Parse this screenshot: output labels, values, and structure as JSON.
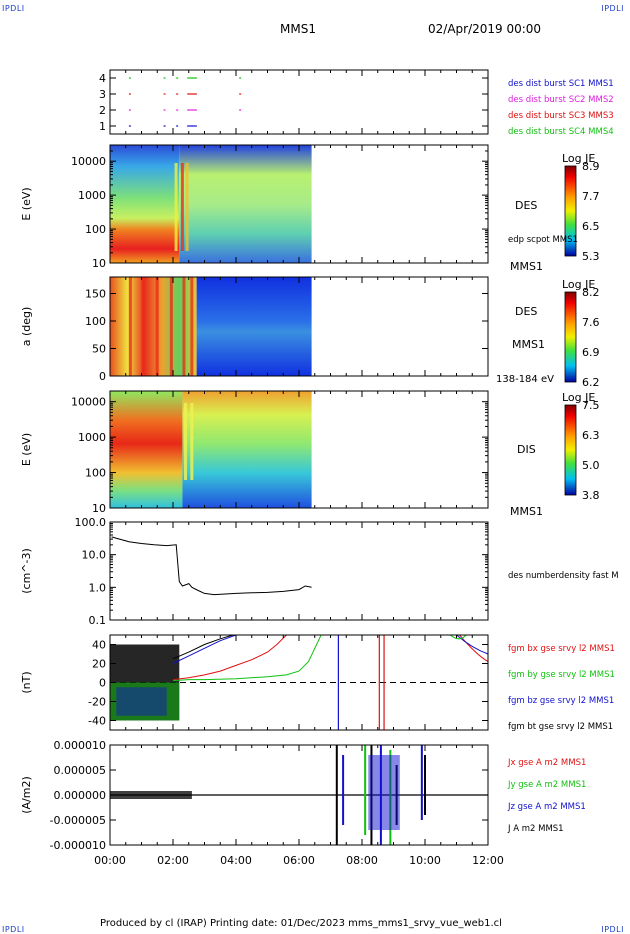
{
  "header": {
    "corner_tl": "IPDLI",
    "corner_tr": "IPDLI",
    "corner_bl": "IPDLI",
    "corner_br": "IPDLI",
    "spacecraft": "MMS1",
    "date": "02/Apr/2019 00:00"
  },
  "footer": {
    "text": "Produced by cl (IRAP)   Printing date: 01/Dec/2023   mms_mms1_srvy_vue_web1.cl"
  },
  "time_axis": {
    "ticks": [
      "00:00",
      "02:00",
      "04:00",
      "06:00",
      "08:00",
      "10:00",
      "12:00"
    ],
    "range_hours": [
      0,
      12
    ]
  },
  "chart_data": [
    {
      "type": "scatter",
      "panel": "burst-availability",
      "y_ticks": [
        "1",
        "2",
        "3",
        "4"
      ],
      "ylim": [
        0.5,
        4.5
      ],
      "series": [
        {
          "name": "des dist burst SC1 MMS1",
          "level": 1,
          "color": "#1010d0",
          "x_hours": [
            0.6,
            1.7,
            2.1,
            2.45,
            2.6
          ]
        },
        {
          "name": "des dist burst SC2 MMS2",
          "level": 2,
          "color": "#e020e0",
          "x_hours": [
            0.6,
            1.7,
            2.1,
            2.45,
            2.6,
            4.1
          ]
        },
        {
          "name": "des dist burst SC3 MMS3",
          "level": 3,
          "color": "#e01010",
          "x_hours": [
            0.6,
            1.7,
            2.1,
            2.45,
            2.6,
            4.1
          ]
        },
        {
          "name": "des dist burst SC4 MMS4",
          "level": 4,
          "color": "#10c010",
          "x_hours": [
            0.6,
            1.7,
            2.1,
            2.45,
            2.6,
            4.1
          ]
        }
      ]
    },
    {
      "type": "heatmap",
      "panel": "des-energy",
      "ylabel": "E (eV)",
      "y_scale": "log",
      "ylim": [
        10,
        30000
      ],
      "y_ticks": [
        "10",
        "100",
        "1000",
        "10000"
      ],
      "label_right": "DES",
      "label_right2": "edp scpot MMS1",
      "label_sc": "MMS1",
      "colorbar": {
        "title": "Log JE",
        "ticks": [
          "8.9",
          "7.7",
          "6.5",
          "5.3"
        ],
        "range": [
          5.3,
          8.9
        ]
      },
      "data_x_range_hours": [
        0,
        6.4
      ]
    },
    {
      "type": "heatmap",
      "panel": "des-pitch",
      "ylabel": "a (deg)",
      "ylim": [
        0,
        180
      ],
      "y_ticks": [
        "0",
        "50",
        "100",
        "150"
      ],
      "label_right": "DES",
      "label_sc": "MMS1",
      "label_energy": "138-184 eV",
      "colorbar": {
        "title": "Log JE",
        "ticks": [
          "8.2",
          "7.6",
          "6.9",
          "6.2"
        ],
        "range": [
          6.2,
          8.2
        ]
      },
      "data_x_range_hours": [
        0,
        6.4
      ]
    },
    {
      "type": "heatmap",
      "panel": "dis-energy",
      "ylabel": "E (eV)",
      "y_scale": "log",
      "ylim": [
        10,
        20000
      ],
      "y_ticks": [
        "10",
        "100",
        "1000",
        "10000"
      ],
      "label_right": "DIS",
      "label_sc": "MMS1",
      "colorbar": {
        "title": "Log JE",
        "ticks": [
          "7.5",
          "6.3",
          "5.0",
          "3.8"
        ],
        "range": [
          3.8,
          7.5
        ]
      },
      "data_x_range_hours": [
        0,
        6.4
      ]
    },
    {
      "type": "line",
      "panel": "density",
      "ylabel": "(cm^-3)",
      "y_scale": "log",
      "ylim": [
        0.1,
        100
      ],
      "y_ticks": [
        "0.1",
        "1.0",
        "10.0",
        "100.0"
      ],
      "series": [
        {
          "name": "des numberdensity fast M",
          "color": "#000000",
          "x_hours": [
            0.05,
            0.3,
            0.6,
            1.0,
            1.4,
            1.8,
            2.1,
            2.2,
            2.3,
            2.5,
            2.6,
            2.8,
            3.0,
            3.3,
            3.6,
            4.0,
            4.5,
            5.0,
            5.5,
            6.0,
            6.2,
            6.4
          ],
          "values": [
            35,
            30,
            25,
            22,
            20,
            19,
            20,
            1.5,
            1.1,
            1.3,
            1.0,
            0.8,
            0.65,
            0.6,
            0.62,
            0.65,
            0.68,
            0.7,
            0.75,
            0.85,
            1.1,
            1.0
          ]
        }
      ]
    },
    {
      "type": "line",
      "panel": "magnetic-field",
      "ylabel": "(nT)",
      "ylim": [
        -50,
        50
      ],
      "y_ticks": [
        "-40",
        "-20",
        "0",
        "20",
        "40"
      ],
      "series": [
        {
          "name": "fgm bx gse srvy l2 MMS1",
          "color": "#e01010",
          "x_hours": [
            2.0,
            2.5,
            3.0,
            3.5,
            4.0,
            4.5,
            5.0,
            5.3,
            5.6
          ],
          "values": [
            3,
            5,
            8,
            12,
            18,
            24,
            32,
            40,
            50
          ]
        },
        {
          "name": "fgm by gse srvy l2 MMS1",
          "color": "#10c010",
          "x_hours": [
            2.0,
            2.5,
            3.0,
            4.0,
            5.0,
            5.6,
            6.0,
            6.3,
            6.5,
            6.7
          ],
          "values": [
            2,
            3,
            3,
            4,
            6,
            8,
            12,
            22,
            36,
            50
          ]
        },
        {
          "name": "fgm bz gse srvy l2 MMS1",
          "color": "#1010d0",
          "x_hours": [
            2.0,
            2.5,
            3.0,
            3.5,
            4.0
          ],
          "values": [
            20,
            28,
            36,
            44,
            50
          ]
        },
        {
          "name": "fgm bt gse srvy l2 MMS1",
          "color": "#000000",
          "x_hours": [
            2.0,
            2.5,
            3.0,
            3.5,
            3.9
          ],
          "values": [
            25,
            32,
            40,
            46,
            50
          ]
        }
      ]
    },
    {
      "type": "line",
      "panel": "current-density",
      "ylabel": "(A/m2)",
      "ylim": [
        -0.0001,
        0.0001
      ],
      "y_ticks": [
        "-0.000010",
        "-0.000005",
        "0.000000",
        "0.000005",
        "0.000010"
      ],
      "series": [
        {
          "name": "Jx gse A m2 MMS1",
          "color": "#e01010"
        },
        {
          "name": "Jy gse A m2 MMS1",
          "color": "#10c010"
        },
        {
          "name": "Jz gse A m2 MMS1",
          "color": "#1010d0"
        },
        {
          "name": "J A m2 MMS1",
          "color": "#000000"
        }
      ]
    }
  ]
}
